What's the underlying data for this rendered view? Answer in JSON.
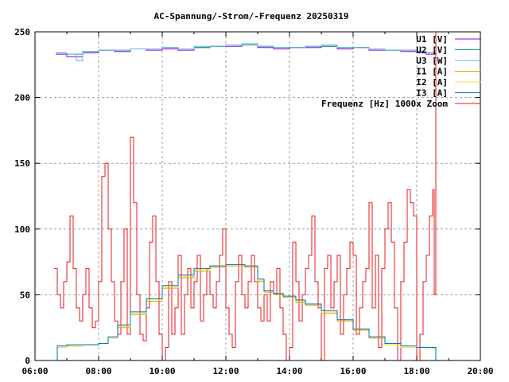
{
  "chart_data": {
    "type": "line",
    "title": "AC-Spannung/-Strom/-Frequenz 20250319",
    "xlabel": "",
    "ylabel": "",
    "xlim_hours": [
      6,
      20
    ],
    "ylim": [
      0,
      250
    ],
    "grid": true,
    "legend_position": "top-right",
    "x_tick_labels": [
      "06:00",
      "08:00",
      "10:00",
      "12:00",
      "14:00",
      "16:00",
      "18:00",
      "20:00"
    ],
    "y_tick_labels": [
      "0",
      "50",
      "100",
      "150",
      "200",
      "250"
    ],
    "y_ticks": [
      0,
      50,
      100,
      150,
      200,
      250
    ],
    "x_ticks_hours": [
      6,
      8,
      10,
      12,
      14,
      16,
      18,
      20
    ],
    "series": [
      {
        "name": "U1 [V]",
        "color": "#9400d3",
        "x_hours": [
          6.65,
          7.0,
          7.5,
          8.0,
          8.5,
          9.0,
          9.5,
          10.0,
          10.5,
          11.0,
          11.5,
          12.0,
          12.5,
          13.0,
          13.5,
          14.0,
          14.5,
          15.0,
          15.5,
          16.0,
          16.5,
          17.0,
          17.5,
          18.0,
          18.3,
          18.6
        ],
        "values": [
          233,
          231,
          234,
          236,
          235,
          237,
          236,
          237,
          236,
          238,
          239,
          239,
          240,
          238,
          237,
          238,
          238,
          239,
          237,
          238,
          236,
          236,
          235,
          234,
          233,
          233
        ]
      },
      {
        "name": "U2 [V]",
        "color": "#009e73",
        "x_hours": [
          6.65,
          7.0,
          7.5,
          8.0,
          8.5,
          9.0,
          9.5,
          10.0,
          10.5,
          11.0,
          11.5,
          12.0,
          12.5,
          13.0,
          13.5,
          14.0,
          14.5,
          15.0,
          15.5,
          16.0,
          16.5,
          17.0,
          17.5,
          18.0,
          18.3,
          18.6
        ],
        "values": [
          234,
          233,
          235,
          236,
          236,
          237,
          237,
          238,
          237,
          238,
          239,
          240,
          240,
          239,
          238,
          238,
          239,
          239,
          238,
          238,
          237,
          236,
          236,
          235,
          234,
          234
        ]
      },
      {
        "name": "U3 [W]",
        "color": "#56b4e9",
        "x_hours": [
          6.65,
          7.0,
          7.3,
          7.5,
          8.0,
          8.5,
          9.0,
          9.5,
          10.0,
          10.5,
          11.0,
          11.5,
          12.0,
          12.5,
          13.0,
          13.5,
          14.0,
          14.5,
          15.0,
          15.5,
          16.0,
          16.5,
          17.0,
          17.5,
          18.0,
          18.3,
          18.6
        ],
        "values": [
          234,
          233,
          228,
          235,
          236,
          236,
          237,
          237,
          238,
          237,
          239,
          239,
          240,
          241,
          239,
          238,
          238,
          239,
          240,
          238,
          238,
          237,
          236,
          236,
          235,
          234,
          234
        ]
      },
      {
        "name": "I1 [A]",
        "color": "#e69f00",
        "x_hours": [
          6.6,
          6.7,
          7.0,
          7.5,
          8.0,
          8.3,
          8.6,
          9.0,
          9.5,
          10.0,
          10.5,
          11.0,
          11.5,
          12.0,
          12.3,
          12.6,
          13.0,
          13.2,
          13.5,
          13.8,
          14.2,
          14.5,
          15.0,
          15.5,
          16.0,
          16.5,
          17.0,
          17.5,
          18.0,
          18.5,
          18.6
        ],
        "values": [
          0,
          10,
          11,
          12,
          13,
          17,
          25,
          35,
          45,
          55,
          63,
          68,
          71,
          72,
          72,
          71,
          60,
          52,
          50,
          48,
          44,
          42,
          36,
          30,
          23,
          17,
          12,
          10,
          10,
          9,
          0
        ]
      },
      {
        "name": "I2 [A]",
        "color": "#f0e442",
        "x_hours": [
          6.6,
          6.7,
          7.0,
          7.5,
          8.0,
          8.3,
          8.6,
          9.0,
          9.5,
          10.0,
          10.5,
          11.0,
          11.5,
          12.0,
          12.3,
          12.6,
          13.0,
          13.2,
          13.5,
          13.8,
          14.2,
          14.5,
          15.0,
          15.5,
          16.0,
          16.5,
          17.0,
          17.5,
          18.0,
          18.5,
          18.6
        ],
        "values": [
          0,
          10,
          11,
          12,
          13,
          17,
          26,
          36,
          46,
          56,
          64,
          69,
          72,
          73,
          73,
          72,
          61,
          53,
          51,
          49,
          45,
          43,
          37,
          31,
          24,
          18,
          12,
          10,
          10,
          9,
          0
        ]
      },
      {
        "name": "I3 [A]",
        "color": "#0072b2",
        "x_hours": [
          6.6,
          6.7,
          7.0,
          7.5,
          8.0,
          8.3,
          8.6,
          9.0,
          9.5,
          10.0,
          10.5,
          11.0,
          11.5,
          12.0,
          12.3,
          12.6,
          13.0,
          13.2,
          13.5,
          13.8,
          14.2,
          14.5,
          15.0,
          15.5,
          16.0,
          16.5,
          17.0,
          17.5,
          18.0,
          18.5,
          18.6
        ],
        "values": [
          0,
          11,
          12,
          12,
          13,
          18,
          27,
          37,
          47,
          57,
          65,
          70,
          72,
          73,
          73,
          72,
          62,
          53,
          51,
          49,
          46,
          43,
          38,
          31,
          24,
          18,
          13,
          11,
          10,
          10,
          0
        ]
      },
      {
        "name": "Frequenz [Hz] 1000x Zoom",
        "color": "#e41a1c",
        "x_hours": [
          6.6,
          6.7,
          6.8,
          6.9,
          7.0,
          7.1,
          7.2,
          7.3,
          7.4,
          7.5,
          7.6,
          7.7,
          7.8,
          7.9,
          8.0,
          8.1,
          8.2,
          8.3,
          8.4,
          8.5,
          8.6,
          8.7,
          8.8,
          8.9,
          9.0,
          9.1,
          9.2,
          9.3,
          9.4,
          9.5,
          9.6,
          9.7,
          9.8,
          9.9,
          10.0,
          10.1,
          10.2,
          10.3,
          10.4,
          10.5,
          10.6,
          10.7,
          10.8,
          10.9,
          11.0,
          11.1,
          11.2,
          11.3,
          11.4,
          11.5,
          11.6,
          11.7,
          11.8,
          11.9,
          12.0,
          12.1,
          12.2,
          12.3,
          12.4,
          12.5,
          12.6,
          12.7,
          12.8,
          12.9,
          13.0,
          13.1,
          13.2,
          13.3,
          13.4,
          13.5,
          13.6,
          13.7,
          13.8,
          13.9,
          14.0,
          14.1,
          14.2,
          14.3,
          14.4,
          14.5,
          14.6,
          14.7,
          14.8,
          14.9,
          15.0,
          15.1,
          15.2,
          15.3,
          15.4,
          15.5,
          15.6,
          15.7,
          15.8,
          15.9,
          16.0,
          16.1,
          16.2,
          16.3,
          16.4,
          16.5,
          16.6,
          16.7,
          16.8,
          16.9,
          17.0,
          17.1,
          17.2,
          17.3,
          17.4,
          17.5,
          17.6,
          17.7,
          17.8,
          17.9,
          18.0,
          18.1,
          18.2,
          18.3,
          18.4,
          18.5,
          18.55,
          18.6
        ],
        "values": [
          70,
          50,
          40,
          60,
          75,
          110,
          70,
          40,
          30,
          50,
          70,
          40,
          25,
          30,
          60,
          140,
          150,
          100,
          60,
          30,
          20,
          60,
          100,
          20,
          170,
          120,
          50,
          20,
          15,
          40,
          90,
          110,
          60,
          20,
          0,
          10,
          60,
          20,
          40,
          80,
          20,
          50,
          70,
          40,
          60,
          80,
          30,
          50,
          70,
          50,
          40,
          60,
          80,
          100,
          40,
          20,
          10,
          60,
          80,
          50,
          40,
          60,
          80,
          60,
          40,
          30,
          50,
          30,
          60,
          50,
          70,
          40,
          20,
          0,
          10,
          90,
          60,
          30,
          50,
          70,
          80,
          110,
          60,
          40,
          0,
          70,
          80,
          40,
          60,
          80,
          20,
          50,
          70,
          90,
          80,
          20,
          40,
          60,
          70,
          120,
          40,
          80,
          10,
          70,
          100,
          120,
          90,
          40,
          0,
          60,
          90,
          130,
          120,
          110,
          0,
          20,
          60,
          80,
          110,
          130,
          50,
          250
        ]
      }
    ]
  }
}
